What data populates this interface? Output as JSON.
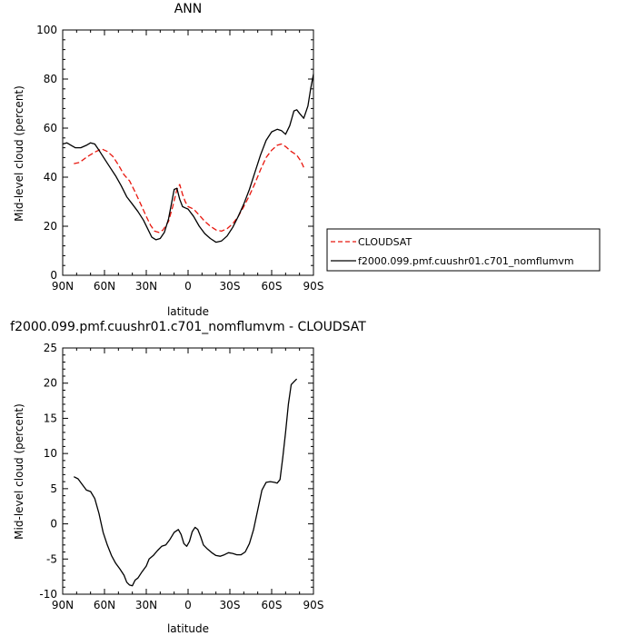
{
  "chart_data": [
    {
      "type": "line",
      "title": "ANN",
      "xlabel": "latitude",
      "ylabel": "Mid-level cloud (percent)",
      "xlim": [
        90,
        -90
      ],
      "ylim": [
        0,
        100
      ],
      "x_ticks": [
        90,
        60,
        30,
        0,
        -30,
        -60,
        -90
      ],
      "x_tick_labels": [
        "90N",
        "60N",
        "30N",
        "0",
        "30S",
        "60S",
        "90S"
      ],
      "y_ticks": [
        0,
        20,
        40,
        60,
        80,
        100
      ],
      "y_tick_labels": [
        "0",
        "20",
        "40",
        "60",
        "80",
        "100"
      ],
      "legend_position": "right",
      "series": [
        {
          "name": "CLOUDSAT",
          "color": "#e8170e",
          "dash": "dashed",
          "points": [
            [
              82,
              45.5
            ],
            [
              78,
              46
            ],
            [
              72,
              48.5
            ],
            [
              66,
              50.5
            ],
            [
              62,
              51.5
            ],
            [
              58,
              50.5
            ],
            [
              54,
              48.5
            ],
            [
              50,
              45
            ],
            [
              46,
              41
            ],
            [
              42,
              38.5
            ],
            [
              38,
              34
            ],
            [
              34,
              29
            ],
            [
              30,
              24
            ],
            [
              27,
              20.5
            ],
            [
              24,
              18
            ],
            [
              21,
              17.5
            ],
            [
              18,
              18.5
            ],
            [
              14,
              22
            ],
            [
              11,
              28
            ],
            [
              8,
              35
            ],
            [
              6,
              37
            ],
            [
              4,
              33
            ],
            [
              2,
              30
            ],
            [
              0,
              28
            ],
            [
              -4,
              27
            ],
            [
              -8,
              24.5
            ],
            [
              -12,
              22
            ],
            [
              -16,
              20
            ],
            [
              -20,
              18.5
            ],
            [
              -24,
              18
            ],
            [
              -28,
              19
            ],
            [
              -32,
              21
            ],
            [
              -36,
              24
            ],
            [
              -40,
              28
            ],
            [
              -44,
              32.5
            ],
            [
              -48,
              37.5
            ],
            [
              -52,
              43
            ],
            [
              -56,
              48
            ],
            [
              -60,
              51
            ],
            [
              -64,
              53
            ],
            [
              -67,
              53.5
            ],
            [
              -70,
              52.5
            ],
            [
              -74,
              50.5
            ],
            [
              -78,
              49
            ],
            [
              -81,
              46.5
            ],
            [
              -83,
              44
            ]
          ]
        },
        {
          "name": "f2000.099.pmf.cuushr01.c701_nomflumvm",
          "color": "#000000",
          "dash": "solid",
          "points": [
            [
              90,
              53.5
            ],
            [
              87,
              54
            ],
            [
              84,
              53
            ],
            [
              81,
              52
            ],
            [
              77,
              52
            ],
            [
              73,
              53
            ],
            [
              70,
              54
            ],
            [
              67,
              53.5
            ],
            [
              64,
              51
            ],
            [
              60,
              47.5
            ],
            [
              56,
              44
            ],
            [
              52,
              40.5
            ],
            [
              48,
              36.5
            ],
            [
              44,
              32
            ],
            [
              40,
              29
            ],
            [
              36,
              26
            ],
            [
              32,
              22.5
            ],
            [
              29,
              19
            ],
            [
              26,
              15.5
            ],
            [
              23,
              14.5
            ],
            [
              20,
              15
            ],
            [
              17,
              17.5
            ],
            [
              14,
              23
            ],
            [
              12,
              29
            ],
            [
              10,
              35
            ],
            [
              8,
              35.5
            ],
            [
              6,
              31
            ],
            [
              4,
              28
            ],
            [
              2,
              27.5
            ],
            [
              0,
              27
            ],
            [
              -4,
              24
            ],
            [
              -8,
              20
            ],
            [
              -12,
              17
            ],
            [
              -16,
              15
            ],
            [
              -20,
              13.5
            ],
            [
              -24,
              14
            ],
            [
              -28,
              16
            ],
            [
              -32,
              19.5
            ],
            [
              -36,
              24
            ],
            [
              -40,
              29
            ],
            [
              -44,
              35
            ],
            [
              -48,
              42
            ],
            [
              -52,
              49
            ],
            [
              -56,
              55
            ],
            [
              -60,
              58.5
            ],
            [
              -64,
              59.5
            ],
            [
              -67,
              59
            ],
            [
              -70,
              57.5
            ],
            [
              -73,
              61
            ],
            [
              -76,
              67
            ],
            [
              -78,
              67.5
            ],
            [
              -80,
              66
            ],
            [
              -83,
              64
            ],
            [
              -86,
              69
            ],
            [
              -88,
              76
            ],
            [
              -90,
              82
            ]
          ]
        }
      ]
    },
    {
      "type": "line",
      "title": "f2000.099.pmf.cuushr01.c701_nomflumvm  -  CLOUDSAT",
      "xlabel": "latitude",
      "ylabel": "Mid-level cloud (percent)",
      "xlim": [
        90,
        -90
      ],
      "ylim": [
        -10,
        25
      ],
      "x_ticks": [
        90,
        60,
        30,
        0,
        -30,
        -60,
        -90
      ],
      "x_tick_labels": [
        "90N",
        "60N",
        "30N",
        "0",
        "30S",
        "60S",
        "90S"
      ],
      "y_ticks": [
        -10,
        -5,
        0,
        5,
        10,
        15,
        20,
        25
      ],
      "y_tick_labels": [
        "-10",
        "-5",
        "0",
        "5",
        "10",
        "15",
        "20",
        "25"
      ],
      "series": [
        {
          "color": "#000000",
          "dash": "solid",
          "points": [
            [
              82,
              6.7
            ],
            [
              79,
              6.4
            ],
            [
              76,
              5.6
            ],
            [
              73,
              4.8
            ],
            [
              70,
              4.6
            ],
            [
              67,
              3.6
            ],
            [
              64,
              1.5
            ],
            [
              61,
              -1.2
            ],
            [
              58,
              -3
            ],
            [
              55,
              -4.5
            ],
            [
              52,
              -5.6
            ],
            [
              49,
              -6.4
            ],
            [
              46,
              -7.3
            ],
            [
              44,
              -8.3
            ],
            [
              42,
              -8.7
            ],
            [
              40,
              -8.8
            ],
            [
              38,
              -8
            ],
            [
              36,
              -7.7
            ],
            [
              33,
              -6.8
            ],
            [
              30,
              -6
            ],
            [
              28,
              -5
            ],
            [
              25,
              -4.5
            ],
            [
              22,
              -3.8
            ],
            [
              19,
              -3.2
            ],
            [
              16,
              -3
            ],
            [
              13,
              -2.2
            ],
            [
              10,
              -1.2
            ],
            [
              7,
              -0.8
            ],
            [
              5,
              -1.5
            ],
            [
              3,
              -2.8
            ],
            [
              1,
              -3.2
            ],
            [
              -1,
              -2.5
            ],
            [
              -3,
              -1.1
            ],
            [
              -5,
              -0.5
            ],
            [
              -7,
              -0.8
            ],
            [
              -9,
              -1.8
            ],
            [
              -11,
              -3
            ],
            [
              -14,
              -3.6
            ],
            [
              -17,
              -4.1
            ],
            [
              -20,
              -4.5
            ],
            [
              -23,
              -4.6
            ],
            [
              -26,
              -4.4
            ],
            [
              -29,
              -4.1
            ],
            [
              -32,
              -4.2
            ],
            [
              -35,
              -4.4
            ],
            [
              -38,
              -4.4
            ],
            [
              -41,
              -4
            ],
            [
              -44,
              -2.8
            ],
            [
              -47,
              -0.8
            ],
            [
              -50,
              2
            ],
            [
              -53,
              4.8
            ],
            [
              -56,
              5.9
            ],
            [
              -59,
              6
            ],
            [
              -62,
              5.9
            ],
            [
              -64,
              5.8
            ],
            [
              -66,
              6.3
            ],
            [
              -68,
              9.5
            ],
            [
              -70,
              13
            ],
            [
              -72,
              17
            ],
            [
              -74,
              19.8
            ],
            [
              -76,
              20.2
            ],
            [
              -78,
              20.6
            ]
          ]
        }
      ]
    }
  ]
}
